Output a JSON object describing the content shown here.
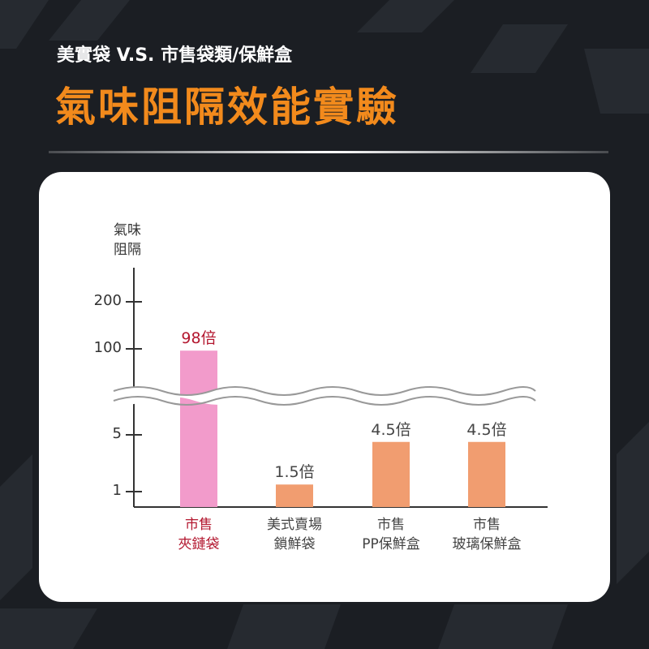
{
  "header": {
    "subtitle": "美實袋 V.S. 市售袋類/保鮮盒",
    "title": "氣味阻隔效能實驗"
  },
  "chart_data": {
    "type": "bar",
    "y_label": "氣味\n阻隔",
    "categories": [
      "市售\n夾鏈袋",
      "美式賣場\n鎖鮮袋",
      "市售\nPP保鮮盒",
      "市售\n玻璃保鮮盒"
    ],
    "values": [
      98,
      1.5,
      4.5,
      4.5
    ],
    "value_labels": [
      "98倍",
      "1.5倍",
      "4.5倍",
      "4.5倍"
    ],
    "colors": [
      "#f29bcb",
      "#f19d70",
      "#f19d70",
      "#f19d70"
    ],
    "label_colors": [
      "#b3172f",
      "#444444",
      "#444444",
      "#444444"
    ],
    "ylim": [
      0,
      270
    ],
    "yticks": [
      1,
      5,
      100,
      200
    ],
    "axis_break": true
  }
}
